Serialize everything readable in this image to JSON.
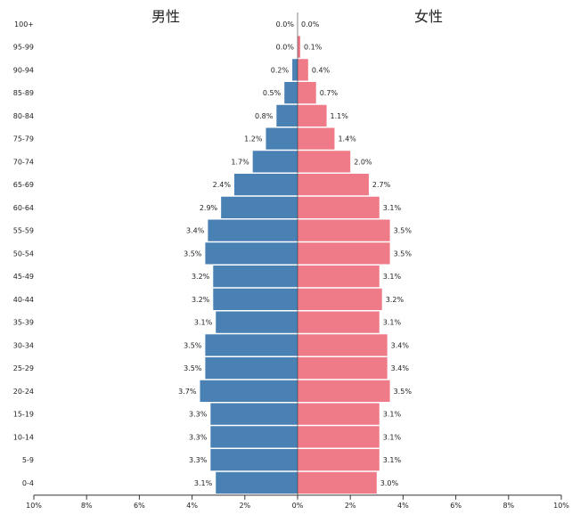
{
  "chart_data": {
    "type": "bar",
    "orientation": "horizontal",
    "title_left": "男性",
    "title_right": "女性",
    "categories": [
      "100+",
      "95-99",
      "90-94",
      "85-89",
      "80-84",
      "75-79",
      "70-74",
      "65-69",
      "60-64",
      "55-59",
      "50-54",
      "45-49",
      "40-44",
      "35-39",
      "30-34",
      "25-29",
      "20-24",
      "15-19",
      "10-14",
      "5-9",
      "0-4"
    ],
    "series": [
      {
        "name": "男性",
        "color": "#4a81b5",
        "values": [
          0.0,
          0.0,
          0.2,
          0.5,
          0.8,
          1.2,
          1.7,
          2.4,
          2.9,
          3.4,
          3.5,
          3.2,
          3.2,
          3.1,
          3.5,
          3.5,
          3.7,
          3.3,
          3.3,
          3.3,
          3.1
        ],
        "labels": [
          "0.0%",
          "0.0%",
          "0.2%",
          "0.5%",
          "0.8%",
          "1.2%",
          "1.7%",
          "2.4%",
          "2.9%",
          "3.4%",
          "3.5%",
          "3.2%",
          "3.2%",
          "3.1%",
          "3.5%",
          "3.5%",
          "3.7%",
          "3.3%",
          "3.3%",
          "3.3%",
          "3.1%"
        ]
      },
      {
        "name": "女性",
        "color": "#ef7b88",
        "values": [
          0.0,
          0.1,
          0.4,
          0.7,
          1.1,
          1.4,
          2.0,
          2.7,
          3.1,
          3.5,
          3.5,
          3.1,
          3.2,
          3.1,
          3.4,
          3.4,
          3.5,
          3.1,
          3.1,
          3.1,
          3.0
        ],
        "labels": [
          "0.0%",
          "0.1%",
          "0.4%",
          "0.7%",
          "1.1%",
          "1.4%",
          "2.0%",
          "2.7%",
          "3.1%",
          "3.5%",
          "3.5%",
          "3.1%",
          "3.2%",
          "3.1%",
          "3.4%",
          "3.4%",
          "3.5%",
          "3.1%",
          "3.1%",
          "3.1%",
          "3.0%"
        ]
      }
    ],
    "xlim": [
      -10,
      10
    ],
    "xticks": [
      {
        "value": -10,
        "label": "10%"
      },
      {
        "value": -8,
        "label": "8%"
      },
      {
        "value": -6,
        "label": "6%"
      },
      {
        "value": -4,
        "label": "4%"
      },
      {
        "value": -2,
        "label": "2%"
      },
      {
        "value": 0,
        "label": "0%"
      },
      {
        "value": 2,
        "label": "2%"
      },
      {
        "value": 4,
        "label": "4%"
      },
      {
        "value": 6,
        "label": "6%"
      },
      {
        "value": 8,
        "label": "8%"
      },
      {
        "value": 10,
        "label": "10%"
      }
    ],
    "grid": false
  }
}
